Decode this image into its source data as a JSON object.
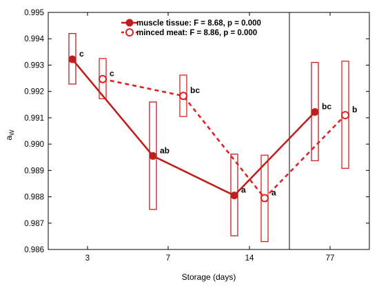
{
  "chart_data": {
    "type": "line",
    "title": "",
    "xlabel": "Storage (days)",
    "ylabel": "a",
    "ylabel_sub": "W",
    "categories": [
      "3",
      "7",
      "14",
      "77"
    ],
    "ylim": [
      0.986,
      0.995
    ],
    "yticks": [
      "0.986",
      "0.987",
      "0.988",
      "0.989",
      "0.990",
      "0.991",
      "0.992",
      "0.993",
      "0.994",
      "0.995"
    ],
    "grid": false,
    "legend_position": "top-center",
    "series": [
      {
        "name": "muscle tissue: F = 8.68, p = 0.000",
        "color": "#bf1e1e",
        "line": "solid",
        "marker": "filled-circle",
        "values": [
          0.99322,
          0.98955,
          0.98805,
          0.99122
        ],
        "ci_low": [
          0.99228,
          0.98752,
          0.98652,
          0.98937
        ],
        "ci_high": [
          0.9942,
          0.9916,
          0.98962,
          0.9931
        ],
        "letters": [
          "c",
          "ab",
          "a",
          "bc"
        ]
      },
      {
        "name": "minced meat: F = 8.86, p = 0.000",
        "color": "#e02020",
        "line": "dashed",
        "marker": "open-circle",
        "values": [
          0.99247,
          0.99183,
          0.98795,
          0.9911
        ],
        "ci_low": [
          0.99172,
          0.99105,
          0.9863,
          0.98908
        ],
        "ci_high": [
          0.99325,
          0.99262,
          0.98958,
          0.99315
        ],
        "letters": [
          "c",
          "bc",
          "a",
          "b"
        ]
      }
    ],
    "vertical_separator_after": "14"
  }
}
